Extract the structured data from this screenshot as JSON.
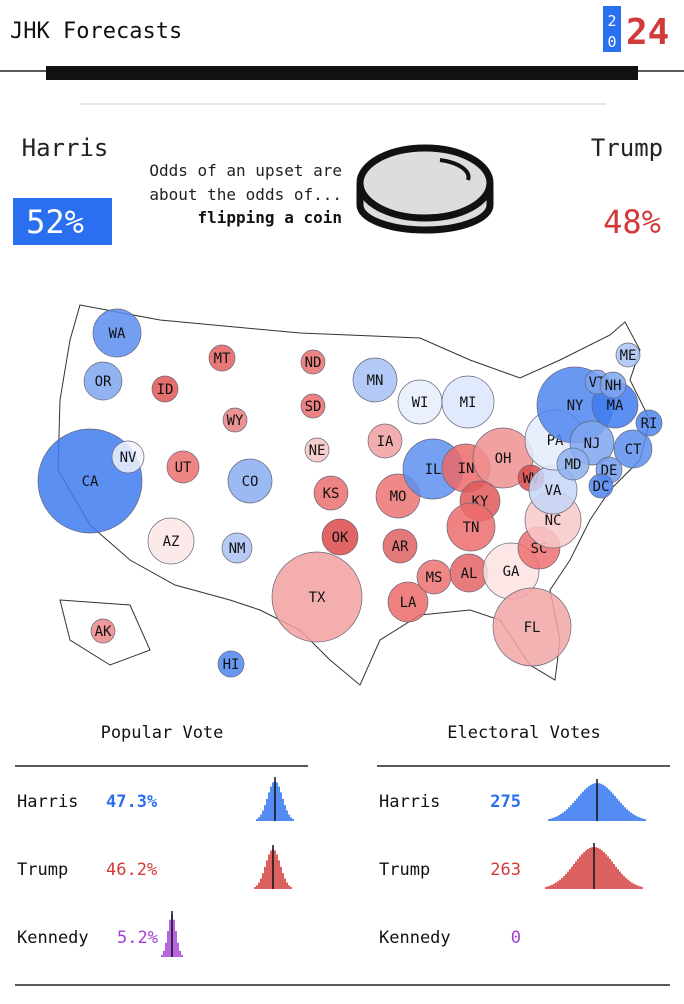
{
  "header": {
    "title": "JHK Forecasts",
    "logo_top": "2",
    "logo_bottom": "0",
    "logo_year": "24"
  },
  "odds": {
    "left_name": "Harris",
    "left_pct": "52%",
    "right_name": "Trump",
    "right_pct": "48%",
    "line1": "Odds of an upset are",
    "line2": "about the odds of...",
    "line3": "flipping a coin"
  },
  "map": {
    "states": [
      "WA",
      "OR",
      "CA",
      "NV",
      "ID",
      "MT",
      "WY",
      "UT",
      "CO",
      "AZ",
      "NM",
      "ND",
      "SD",
      "NE",
      "KS",
      "OK",
      "TX",
      "MN",
      "IA",
      "MO",
      "AR",
      "LA",
      "WI",
      "MI",
      "IL",
      "IN",
      "OH",
      "KY",
      "TN",
      "MS",
      "AL",
      "GA",
      "FL",
      "SC",
      "NC",
      "WV",
      "VA",
      "PA",
      "NY",
      "NJ",
      "MD",
      "DE",
      "DC",
      "CT",
      "RI",
      "MA",
      "VT",
      "NH",
      "ME",
      "AK",
      "HI"
    ]
  },
  "popular": {
    "title": "Popular Vote",
    "rows": [
      [
        "Harris",
        "47.3%"
      ],
      [
        "Trump",
        "46.2%"
      ],
      [
        "Kennedy",
        "5.2%"
      ]
    ]
  },
  "electoral": {
    "title": "Electoral Votes",
    "rows": [
      [
        "Harris",
        "275"
      ],
      [
        "Trump",
        "263"
      ],
      [
        "Kennedy",
        "0"
      ]
    ]
  }
}
